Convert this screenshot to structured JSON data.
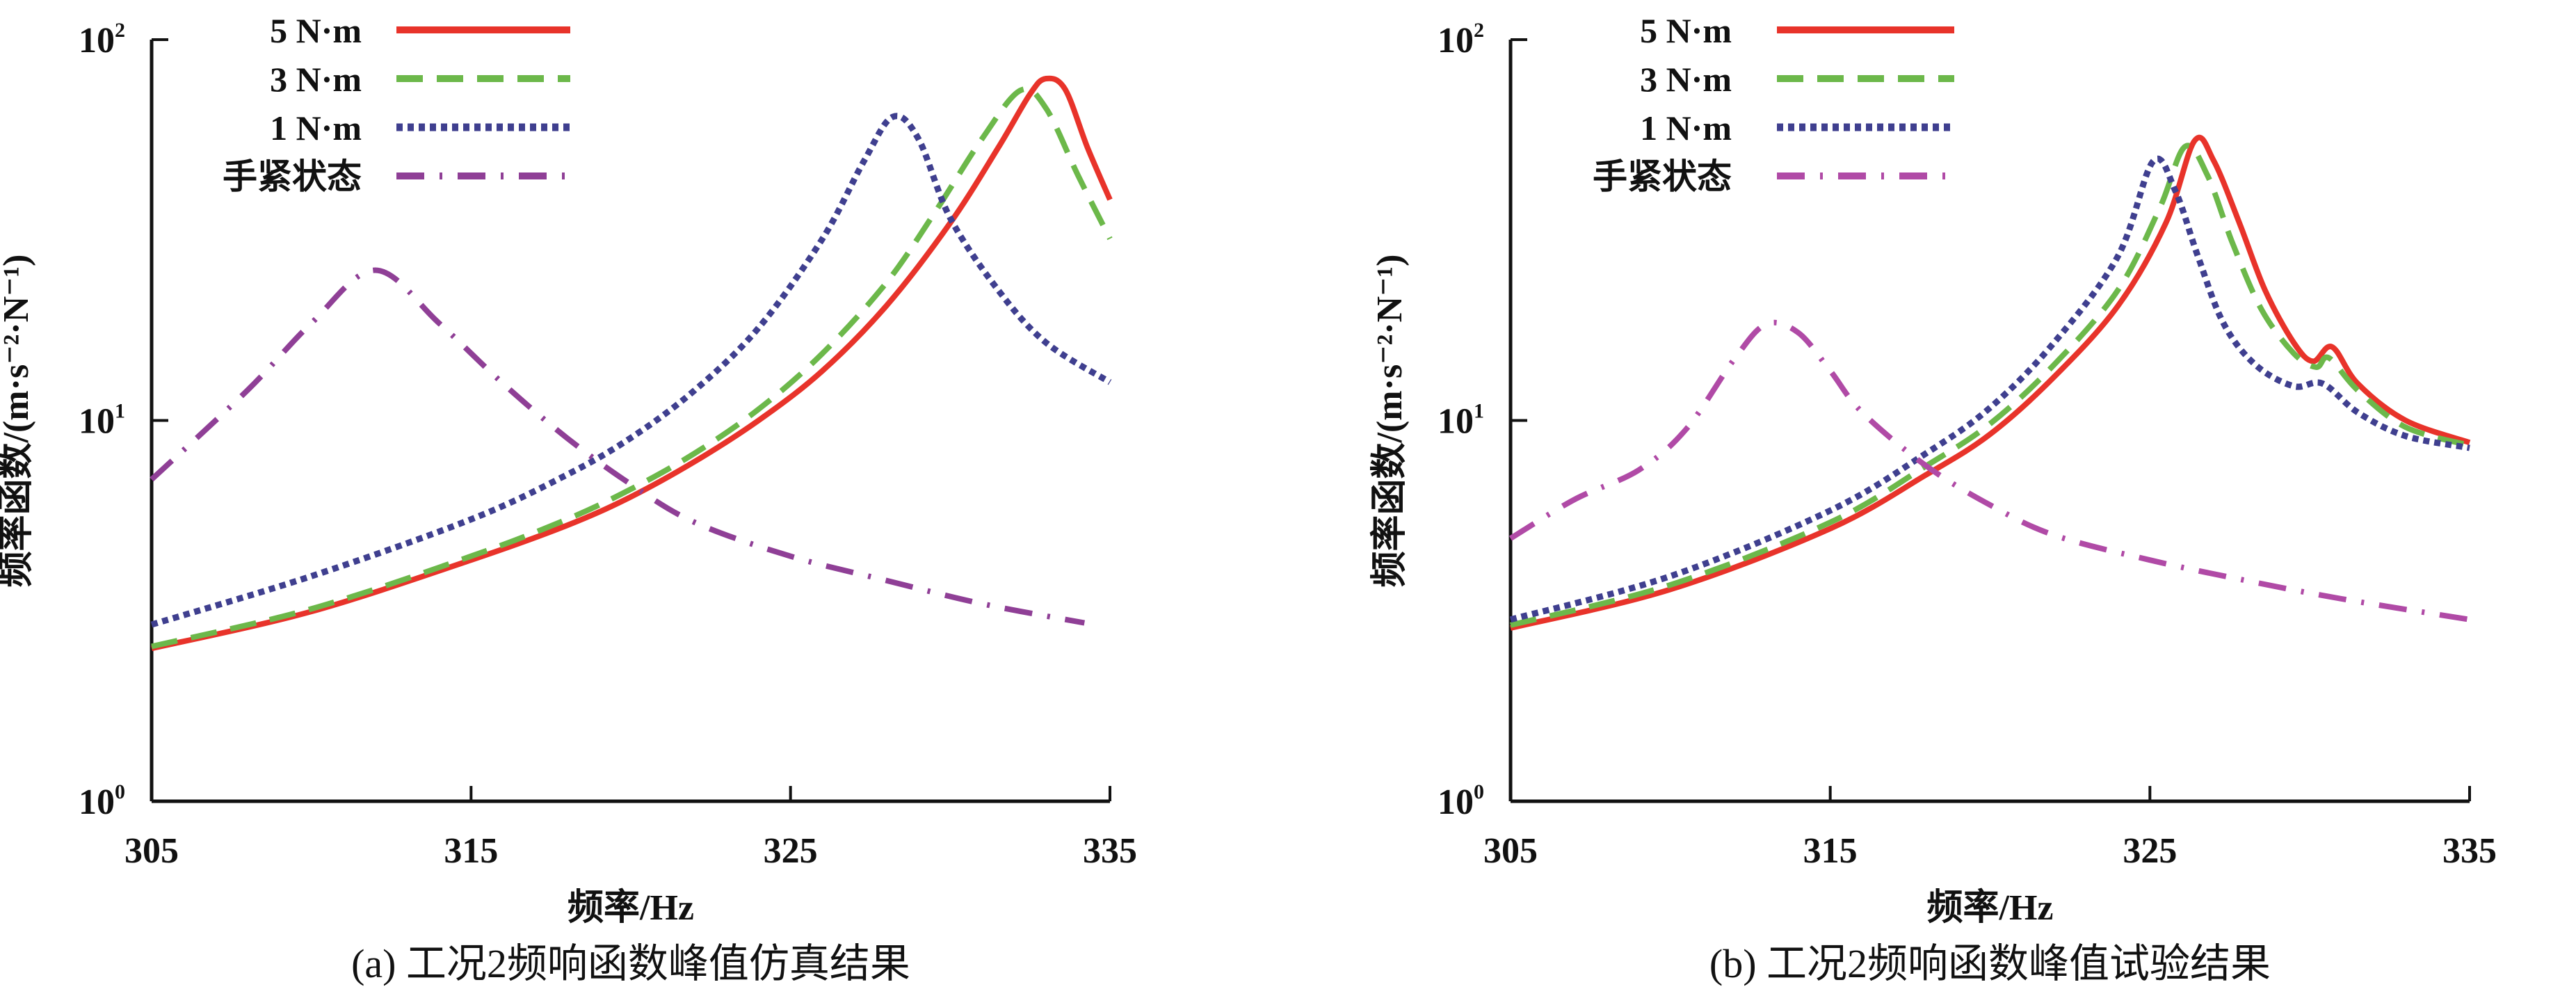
{
  "chart_data": [
    {
      "type": "line",
      "panel": "a",
      "caption": "(a) 工况2频响函数峰值仿真结果",
      "xlabel": "频率/Hz",
      "ylabel": "频率函数/(m·s⁻²·N⁻¹)",
      "xlim": [
        305,
        335
      ],
      "ylim": [
        1,
        100
      ],
      "yscale": "log",
      "xticks": [
        "305",
        "315",
        "325",
        "335"
      ],
      "yticks": [
        {
          "base": "10",
          "exp": "0"
        },
        {
          "base": "10",
          "exp": "1"
        },
        {
          "base": "10",
          "exp": "2"
        }
      ],
      "grid": false,
      "legend_position": "top-left",
      "series": [
        {
          "name": "5 N·m",
          "color": "#e8332a",
          "style": "solid",
          "x": [
            305,
            310,
            315,
            318,
            320,
            322,
            324,
            326,
            328,
            330,
            331.5,
            332.5,
            333,
            333.6,
            334.3,
            335
          ],
          "y": [
            2.52,
            3.15,
            4.3,
            5.3,
            6.3,
            7.8,
            10.0,
            13.5,
            20,
            33,
            52,
            72,
            79,
            74,
            52,
            38
          ]
        },
        {
          "name": "3 N·m",
          "color": "#6cb84a",
          "style": "dashed",
          "x": [
            305,
            310,
            315,
            318,
            320,
            322,
            324,
            326,
            328,
            329.5,
            331,
            332.2,
            333,
            334,
            335
          ],
          "y": [
            2.55,
            3.2,
            4.4,
            5.5,
            6.6,
            8.2,
            10.7,
            15,
            23,
            35,
            55,
            73.6,
            66,
            44,
            30
          ]
        },
        {
          "name": "1 N·m",
          "color": "#3f3f8f",
          "style": "dotted",
          "x": [
            305,
            310,
            315,
            318,
            320,
            322,
            324,
            326,
            327.3,
            328.2,
            329,
            330,
            331.5,
            333,
            335
          ],
          "y": [
            2.91,
            3.9,
            5.5,
            7.2,
            9.0,
            12,
            17.5,
            30,
            48,
            62.7,
            55,
            34,
            22,
            16,
            12.6
          ]
        },
        {
          "name": "手紧状态",
          "color": "#8f3f96",
          "style": "dashdot",
          "x": [
            305,
            308,
            310,
            312,
            314,
            316,
            318,
            320,
            322,
            325,
            328,
            331,
            334.2
          ],
          "y": [
            7.0,
            12,
            18,
            24.8,
            18,
            12.5,
            9.0,
            6.8,
            5.4,
            4.4,
            3.8,
            3.3,
            2.94
          ]
        }
      ]
    },
    {
      "type": "line",
      "panel": "b",
      "caption": "(b) 工况2频响函数峰值试验结果",
      "xlabel": "频率/Hz",
      "ylabel": "频率函数/(m·s⁻²·N⁻¹)",
      "xlim": [
        305,
        335
      ],
      "ylim": [
        1,
        100
      ],
      "yscale": "log",
      "xticks": [
        "305",
        "315",
        "325",
        "335"
      ],
      "yticks": [
        {
          "base": "10",
          "exp": "0"
        },
        {
          "base": "10",
          "exp": "1"
        },
        {
          "base": "10",
          "exp": "2"
        }
      ],
      "grid": false,
      "legend_position": "top-left",
      "series": [
        {
          "name": "5 N·m",
          "color": "#e8332a",
          "style": "solid",
          "x": [
            305,
            310,
            315,
            318,
            320,
            322,
            324,
            325.5,
            326.4,
            327,
            327.8,
            328.6,
            329.5,
            330.1,
            330.7,
            331.5,
            333,
            335
          ],
          "y": [
            2.85,
            3.6,
            5.2,
            7.2,
            9.2,
            13,
            20,
            33,
            54.3,
            48,
            33,
            22,
            16,
            14.3,
            15.6,
            12.5,
            10,
            8.75
          ]
        },
        {
          "name": "3 N·m",
          "color": "#6cb84a",
          "style": "dashed",
          "x": [
            305,
            310,
            315,
            318,
            320,
            322,
            324,
            325.3,
            326.1,
            326.8,
            327.6,
            328.5,
            329.5,
            330.2,
            330.6,
            331.5,
            333,
            335
          ],
          "y": [
            2.9,
            3.7,
            5.4,
            7.6,
            9.8,
            14,
            22,
            36,
            52.4,
            44,
            29,
            19.5,
            15,
            13.8,
            14.6,
            12,
            9.6,
            8.6
          ]
        },
        {
          "name": "1 N·m",
          "color": "#3f3f8f",
          "style": "dotted",
          "x": [
            305,
            310,
            315,
            318,
            320,
            322,
            324,
            325.1,
            325.8,
            326.5,
            327.3,
            328.3,
            329.5,
            330.4,
            331.5,
            333,
            335
          ],
          "y": [
            3.0,
            3.9,
            5.8,
            8.2,
            10.8,
            16,
            27,
            47.9,
            40,
            27,
            18,
            14,
            12.3,
            12.5,
            10.5,
            9.1,
            8.47
          ]
        },
        {
          "name": "手紧状态",
          "color": "#b04aa6",
          "style": "dashdot",
          "x": [
            305,
            307,
            309,
            310.5,
            312,
            313,
            314,
            315,
            316,
            318,
            320,
            322,
            325,
            328,
            331,
            335
          ],
          "y": [
            4.9,
            6.2,
            7.4,
            9.5,
            14.5,
            17.9,
            17,
            13.5,
            10.5,
            7.6,
            6.0,
            5.0,
            4.3,
            3.8,
            3.4,
            3.0
          ]
        }
      ]
    }
  ]
}
